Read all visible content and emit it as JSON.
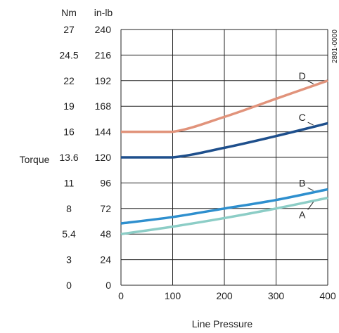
{
  "chart_data": {
    "type": "line",
    "title": "",
    "xlabel": "Line Pressure",
    "ylabel": "Torque",
    "figure_id": "2801-0000",
    "units": {
      "primary": "in-lb",
      "secondary": "Nm"
    },
    "xlim": [
      0,
      400
    ],
    "ylim": [
      0,
      240
    ],
    "x_ticks": [
      "0",
      "100",
      "200",
      "300",
      "400"
    ],
    "x_tick_values": [
      0,
      100,
      200,
      300,
      400
    ],
    "y_ticks_inlb": [
      "0",
      "24",
      "48",
      "72",
      "96",
      "120",
      "144",
      "168",
      "192",
      "216",
      "240"
    ],
    "y_ticks_nm": [
      "0",
      "3",
      "5.4",
      "8",
      "11",
      "13.6",
      "16",
      "19",
      "22",
      "24.5",
      "27"
    ],
    "y_tick_values": [
      0,
      24,
      48,
      72,
      96,
      120,
      144,
      168,
      192,
      216,
      240
    ],
    "grid": true,
    "series": [
      {
        "name": "A",
        "color": "#8ccdc6",
        "x": [
          0,
          100,
          200,
          300,
          400
        ],
        "y": [
          48,
          55,
          63,
          72,
          82
        ]
      },
      {
        "name": "B",
        "color": "#2e8fce",
        "x": [
          0,
          100,
          200,
          300,
          400
        ],
        "y": [
          58,
          64,
          72,
          80,
          90
        ]
      },
      {
        "name": "C",
        "color": "#1e4f8c",
        "x": [
          0,
          100,
          200,
          300,
          400
        ],
        "y": [
          120,
          120,
          129,
          140,
          152
        ]
      },
      {
        "name": "D",
        "color": "#e1937b",
        "x": [
          0,
          100,
          200,
          300,
          400
        ],
        "y": [
          144,
          144,
          158,
          175,
          192
        ]
      }
    ]
  }
}
